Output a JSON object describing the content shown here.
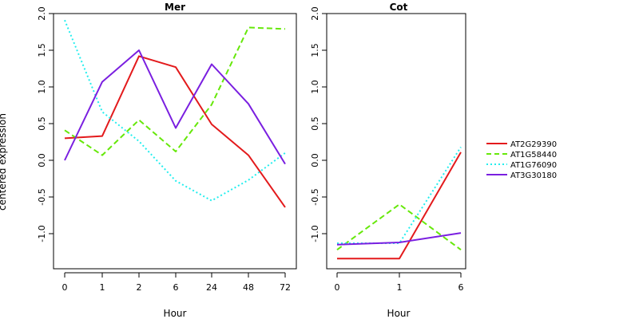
{
  "chart_data": [
    {
      "type": "line",
      "title": "Mer",
      "xlabel": "Hour",
      "ylabel": "centered expression",
      "categories": [
        "0",
        "1",
        "2",
        "6",
        "24",
        "48",
        "72"
      ],
      "ylim": [
        -1.5,
        2.0
      ],
      "yticks": [
        "2.0",
        "1.5",
        "1.0",
        "0.5",
        "0.0",
        "-0.5",
        "-1.0"
      ],
      "series": [
        {
          "name": "AT2G29390",
          "color": "#e31a1c",
          "dash": "solid",
          "values": [
            0.3,
            0.33,
            1.42,
            1.27,
            0.49,
            0.07,
            -0.64
          ]
        },
        {
          "name": "AT1G58440",
          "color": "#66e80a",
          "dash": "dashed",
          "values": [
            0.41,
            0.07,
            0.55,
            0.12,
            0.76,
            1.81,
            1.79
          ]
        },
        {
          "name": "AT1G76090",
          "color": "#22eeee",
          "dash": "dotted",
          "values": [
            1.91,
            0.66,
            0.26,
            -0.28,
            -0.55,
            -0.27,
            0.1
          ]
        },
        {
          "name": "AT3G30180",
          "color": "#7a1fe0",
          "dash": "solid",
          "values": [
            0.0,
            1.07,
            1.5,
            0.44,
            1.31,
            0.77,
            -0.05
          ]
        }
      ]
    },
    {
      "type": "line",
      "title": "Cot",
      "xlabel": "Hour",
      "ylabel": "",
      "categories": [
        "0",
        "1",
        "6"
      ],
      "ylim": [
        -1.5,
        2.0
      ],
      "yticks": [
        "2.0",
        "1.5",
        "1.0",
        "0.5",
        "0.0",
        "-0.5",
        "-1.0"
      ],
      "series": [
        {
          "name": "AT2G29390",
          "color": "#e31a1c",
          "dash": "solid",
          "values": [
            -1.34,
            -1.34,
            0.11
          ]
        },
        {
          "name": "AT1G58440",
          "color": "#66e80a",
          "dash": "dashed",
          "values": [
            -1.22,
            -0.6,
            -1.22
          ]
        },
        {
          "name": "AT1G76090",
          "color": "#22eeee",
          "dash": "dotted",
          "values": [
            -1.13,
            -1.13,
            0.18
          ]
        },
        {
          "name": "AT3G30180",
          "color": "#7a1fe0",
          "dash": "solid",
          "values": [
            -1.15,
            -1.12,
            -0.99
          ]
        }
      ]
    }
  ],
  "legend": {
    "placement": "right",
    "entries": [
      {
        "label": "AT2G29390",
        "color": "#e31a1c",
        "dash": "solid"
      },
      {
        "label": "AT1G58440",
        "color": "#66e80a",
        "dash": "dashed"
      },
      {
        "label": "AT1G76090",
        "color": "#22eeee",
        "dash": "dotted"
      },
      {
        "label": "AT3G30180",
        "color": "#7a1fe0",
        "dash": "solid"
      }
    ]
  }
}
